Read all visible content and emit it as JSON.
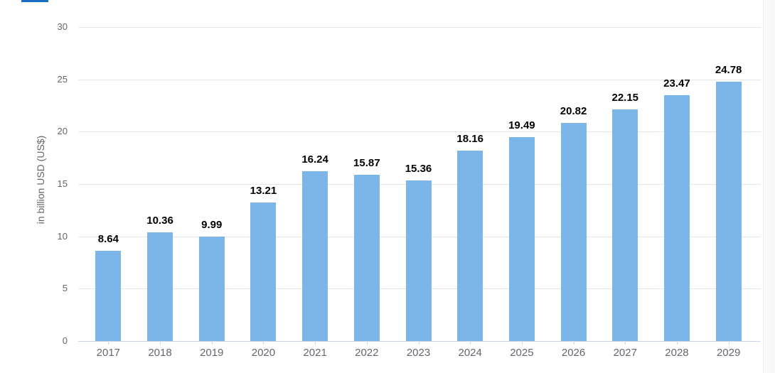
{
  "page": {
    "background_color": "#ffffff",
    "tab_indicator_color": "#1b6ec2"
  },
  "chart_data": {
    "type": "bar",
    "title": "",
    "xlabel": "",
    "ylabel": "in billion USD (US$)",
    "categories": [
      "2017",
      "2018",
      "2019",
      "2020",
      "2021",
      "2022",
      "2023",
      "2024",
      "2025",
      "2026",
      "2027",
      "2028",
      "2029"
    ],
    "values": [
      8.64,
      10.36,
      9.99,
      13.21,
      16.24,
      15.87,
      15.36,
      18.16,
      19.49,
      20.82,
      22.15,
      23.47,
      24.78
    ],
    "value_labels": [
      "8.64",
      "10.36",
      "9.99",
      "13.21",
      "16.24",
      "15.87",
      "15.36",
      "18.16",
      "19.49",
      "20.82",
      "22.15",
      "23.47",
      "24.78"
    ],
    "ylim": [
      0,
      30
    ],
    "yticks": [
      0,
      5,
      10,
      15,
      20,
      25,
      30
    ],
    "grid": true,
    "legend": "none",
    "bar_color": "#7cb5e8",
    "gridline_color": "#e6e6e6",
    "axis_line_color": "#ccd6eb",
    "tick_label_color": "#666666",
    "value_label_color": "#000000"
  }
}
